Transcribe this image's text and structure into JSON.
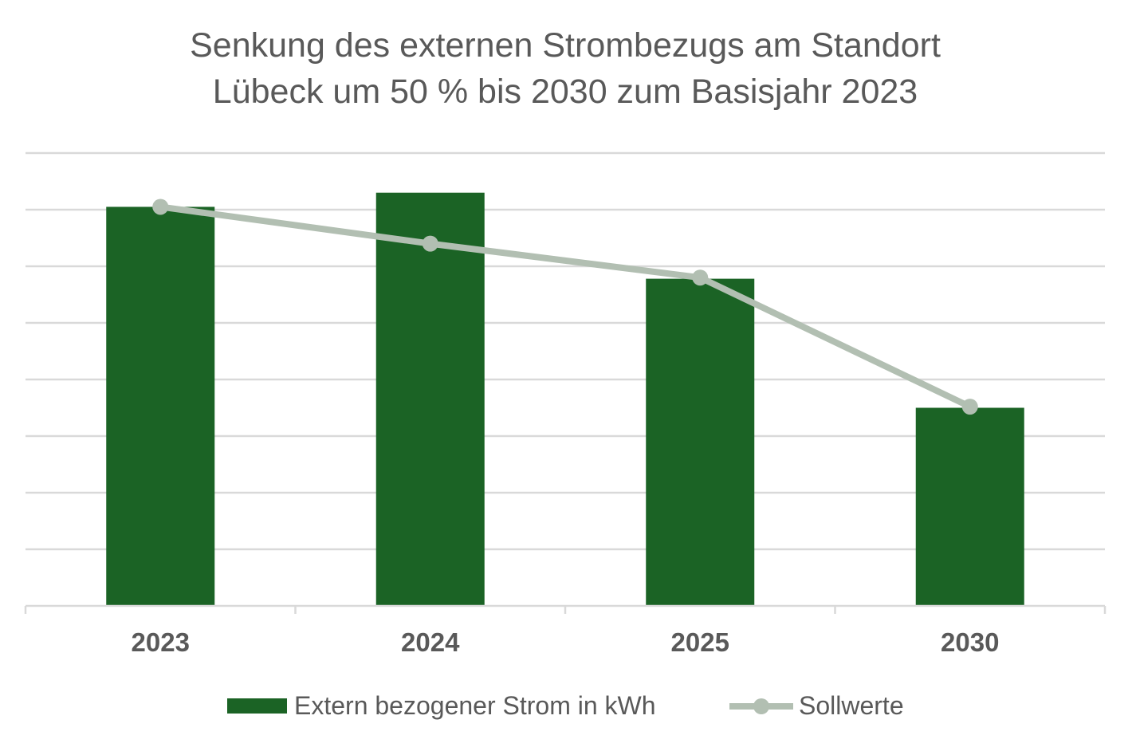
{
  "chart_data": {
    "type": "bar",
    "title_lines": [
      "Senkung des externen Strombezugs am Standort",
      "Lübeck um 50 % bis 2030 zum Basisjahr 2023"
    ],
    "categories": [
      "2023",
      "2024",
      "2025",
      "2030"
    ],
    "series": [
      {
        "name": "Extern bezogener Strom in kWh",
        "kind": "bar",
        "color": "#1b6325",
        "values": [
          7.05,
          7.3,
          5.78,
          3.5
        ]
      },
      {
        "name": "Sollwerte",
        "kind": "line",
        "color": "#b2bfb2",
        "values": [
          7.05,
          6.4,
          5.8,
          3.52
        ]
      }
    ],
    "ylim": [
      0,
      8
    ],
    "gridlines": 8,
    "grid": true,
    "legend_position": "bottom",
    "xlabel": "",
    "ylabel": ""
  }
}
